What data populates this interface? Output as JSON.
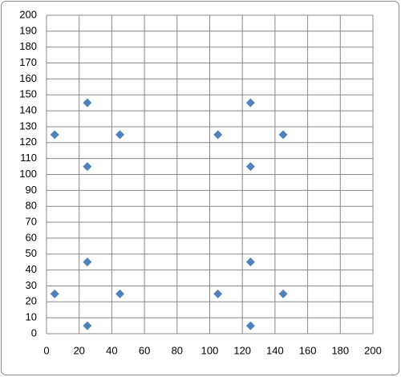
{
  "chart_data": {
    "type": "scatter",
    "x": [
      25,
      125,
      5,
      45,
      105,
      145,
      25,
      125,
      25,
      125,
      5,
      45,
      105,
      145,
      25,
      125
    ],
    "values": [
      145,
      145,
      125,
      125,
      125,
      125,
      105,
      105,
      45,
      45,
      25,
      25,
      25,
      25,
      5,
      5
    ],
    "color": "#4f81bd",
    "marker": "diamond",
    "xlim": [
      0,
      200
    ],
    "xticks": [
      0,
      20,
      40,
      60,
      80,
      100,
      120,
      140,
      160,
      180,
      200
    ],
    "ylim": [
      0,
      200
    ],
    "yticks": [
      0,
      10,
      20,
      30,
      40,
      50,
      60,
      70,
      80,
      90,
      100,
      110,
      120,
      130,
      140,
      150,
      160,
      170,
      180,
      190,
      200
    ],
    "grid": true
  }
}
